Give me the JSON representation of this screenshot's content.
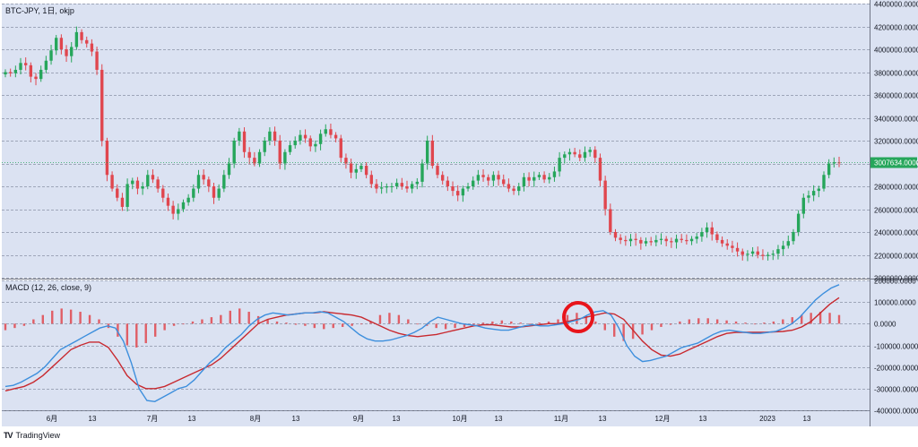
{
  "chart_data": [
    {
      "type": "candlestick",
      "title": "BTC-JPY, 1日, okjp",
      "ylim": [
        2000000,
        4400000
      ],
      "y_ticks": [
        2000000,
        2200000,
        2400000,
        2600000,
        2800000,
        3000000,
        3200000,
        3400000,
        3600000,
        3800000,
        4000000,
        4200000,
        4400000
      ],
      "y_tick_labels": [
        "2000000.0000",
        "2200000.0000",
        "2400000.0000",
        "2600000.0000",
        "2800000.0000",
        "3000000.0000",
        "3200000.0000",
        "3400000.0000",
        "3600000.0000",
        "3800000.0000",
        "4000000.0000",
        "4200000.0000",
        "4400000.0000"
      ],
      "last_price_label": "3007634.0000",
      "grid": true,
      "close_series_approx": [
        3800000,
        3790000,
        3820000,
        3880000,
        3860000,
        3760000,
        3740000,
        3820000,
        3900000,
        3990000,
        4100000,
        4000000,
        3940000,
        4020000,
        4150000,
        4080000,
        4050000,
        3980000,
        3820000,
        3200000,
        2900000,
        2780000,
        2700000,
        2620000,
        2820000,
        2850000,
        2780000,
        2800000,
        2900000,
        2860000,
        2780000,
        2700000,
        2630000,
        2560000,
        2600000,
        2660000,
        2700000,
        2780000,
        2900000,
        2860000,
        2800000,
        2700000,
        2780000,
        2900000,
        3000000,
        3200000,
        3280000,
        3100000,
        3050000,
        3000000,
        3100000,
        3200000,
        3280000,
        3200000,
        3000000,
        3100000,
        3160000,
        3200000,
        3250000,
        3220000,
        3150000,
        3170000,
        3260000,
        3300000,
        3250000,
        3220000,
        3050000,
        3000000,
        2920000,
        2950000,
        2980000,
        2900000,
        2820000,
        2780000,
        2790000,
        2800000,
        2800000,
        2830000,
        2800000,
        2780000,
        2820000,
        2840000,
        3000000,
        3200000,
        2980000,
        2900000,
        2850000,
        2800000,
        2760000,
        2720000,
        2780000,
        2800000,
        2850000,
        2900000,
        2880000,
        2850000,
        2900000,
        2860000,
        2820000,
        2780000,
        2760000,
        2800000,
        2880000,
        2850000,
        2880000,
        2900000,
        2860000,
        2880000,
        2930000,
        3050000,
        3080000,
        3100000,
        3080000,
        3050000,
        3100000,
        3120000,
        3050000,
        2850000,
        2600000,
        2400000,
        2350000,
        2330000,
        2320000,
        2340000,
        2330000,
        2300000,
        2320000,
        2310000,
        2330000,
        2340000,
        2320000,
        2310000,
        2340000,
        2330000,
        2320000,
        2340000,
        2360000,
        2400000,
        2440000,
        2380000,
        2330000,
        2300000,
        2280000,
        2260000,
        2230000,
        2200000,
        2210000,
        2230000,
        2200000,
        2190000,
        2200000,
        2210000,
        2250000,
        2280000,
        2320000,
        2400000,
        2560000,
        2700000,
        2720000,
        2760000,
        2780000,
        2900000,
        3000000,
        3010000,
        3007634
      ]
    },
    {
      "type": "macd",
      "title": "MACD (12, 26, close, 9)",
      "ylim": [
        -400000,
        200000
      ],
      "y_ticks": [
        -400000,
        -300000,
        -200000,
        -100000,
        0,
        100000,
        200000
      ],
      "y_tick_labels": [
        "-400000.0000",
        "-300000.0000",
        "-200000.0000",
        "-100000.0000",
        "0.0000",
        "100000.0000",
        "200000.0000"
      ],
      "macd_line_approx": [
        -290000,
        -285000,
        -270000,
        -250000,
        -230000,
        -200000,
        -160000,
        -120000,
        -100000,
        -80000,
        -60000,
        -40000,
        -20000,
        -10000,
        -20000,
        -80000,
        -180000,
        -300000,
        -355000,
        -360000,
        -340000,
        -320000,
        -300000,
        -290000,
        -260000,
        -220000,
        -180000,
        -150000,
        -110000,
        -80000,
        -50000,
        -10000,
        20000,
        40000,
        50000,
        45000,
        40000,
        45000,
        50000,
        50000,
        55000,
        50000,
        30000,
        10000,
        -20000,
        -50000,
        -70000,
        -80000,
        -80000,
        -75000,
        -65000,
        -55000,
        -40000,
        -20000,
        10000,
        30000,
        20000,
        10000,
        0,
        -5000,
        -10000,
        -20000,
        -25000,
        -30000,
        -30000,
        -20000,
        -10000,
        -5000,
        -10000,
        -10000,
        -5000,
        0,
        10000,
        20000,
        40000,
        55000,
        60000,
        40000,
        -20000,
        -100000,
        -150000,
        -175000,
        -170000,
        -160000,
        -150000,
        -130000,
        -110000,
        -100000,
        -90000,
        -70000,
        -50000,
        -35000,
        -30000,
        -35000,
        -40000,
        -45000,
        -45000,
        -40000,
        -35000,
        -20000,
        0,
        30000,
        70000,
        110000,
        140000,
        165000,
        180000
      ],
      "signal_line_approx": [
        -310000,
        -300000,
        -290000,
        -270000,
        -240000,
        -200000,
        -160000,
        -120000,
        -100000,
        -85000,
        -85000,
        -110000,
        -170000,
        -240000,
        -280000,
        -300000,
        -300000,
        -290000,
        -270000,
        -250000,
        -230000,
        -210000,
        -190000,
        -160000,
        -120000,
        -80000,
        -40000,
        0,
        20000,
        30000,
        40000,
        45000,
        50000,
        50000,
        55000,
        50000,
        45000,
        40000,
        30000,
        10000,
        -10000,
        -30000,
        -45000,
        -55000,
        -60000,
        -55000,
        -50000,
        -40000,
        -30000,
        -20000,
        -10000,
        -5000,
        -5000,
        -10000,
        -15000,
        -15000,
        -10000,
        -5000,
        0,
        0,
        10000,
        20000,
        30000,
        40000,
        50000,
        45000,
        20000,
        -30000,
        -80000,
        -120000,
        -145000,
        -150000,
        -140000,
        -120000,
        -100000,
        -80000,
        -60000,
        -45000,
        -40000,
        -40000,
        -40000,
        -40000,
        -38000,
        -36000,
        -30000,
        -15000,
        10000,
        50000,
        90000,
        120000
      ],
      "histogram_approx": [
        -30000,
        -20000,
        -10000,
        20000,
        40000,
        60000,
        70000,
        65000,
        55000,
        40000,
        20000,
        -20000,
        -60000,
        -100000,
        -110000,
        -90000,
        -60000,
        -30000,
        -10000,
        0,
        10000,
        20000,
        30000,
        40000,
        60000,
        70000,
        55000,
        35000,
        20000,
        10000,
        5000,
        -5000,
        -10000,
        -20000,
        -25000,
        -20000,
        -15000,
        -10000,
        0,
        10000,
        40000,
        50000,
        40000,
        20000,
        0,
        -10000,
        -20000,
        -25000,
        -20000,
        -15000,
        -5000,
        5000,
        10000,
        15000,
        10000,
        5000,
        0,
        5000,
        10000,
        20000,
        40000,
        50000,
        35000,
        10000,
        -30000,
        -60000,
        -80000,
        -70000,
        -50000,
        -30000,
        -15000,
        -5000,
        10000,
        20000,
        25000,
        25000,
        20000,
        15000,
        10000,
        5000,
        0,
        5000,
        10000,
        20000,
        30000,
        40000,
        50000,
        55000,
        50000,
        40000
      ],
      "annotation": "red-circle"
    }
  ],
  "x_axis": {
    "tick_labels": [
      "6月",
      "13",
      "7月",
      "13",
      "8月",
      "13",
      "9月",
      "13",
      "10月",
      "13",
      "11月",
      "13",
      "12月",
      "13",
      "2023",
      "13"
    ]
  },
  "brand": {
    "logo": "TV",
    "name": "TradingView"
  },
  "colors": {
    "background": "#dbe2f2",
    "up": "#26a65b",
    "down": "#e0464e",
    "macd_line": "#3d8fdd",
    "signal_line": "#c8292f",
    "histogram": "#e0464e",
    "grid": "#8b93a6",
    "last_price_bg": "#26a65b",
    "annotation": "#e8141b"
  }
}
